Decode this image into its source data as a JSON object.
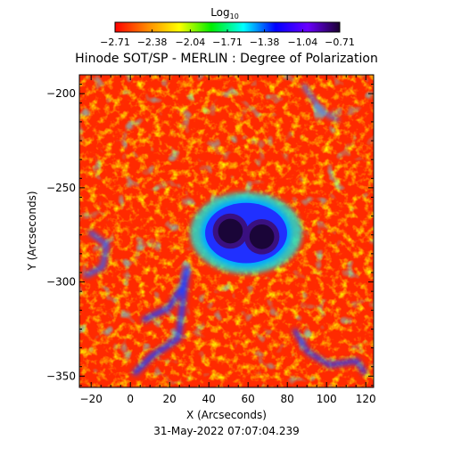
{
  "chart_data": {
    "type": "heatmap",
    "title": "Hinode SOT/SP - MERLIN : Degree of Polarization",
    "subtitle": "31-May-2022 07:07:04.239",
    "xlabel": "X (Arcseconds)",
    "ylabel": "Y (Arcseconds)",
    "xlim": [
      -26,
      124
    ],
    "ylim": [
      -356,
      -190
    ],
    "xticks": [
      -20,
      0,
      20,
      40,
      60,
      80,
      100,
      120
    ],
    "xtick_labels": [
      "−20",
      "0",
      "20",
      "40",
      "60",
      "80",
      "100",
      "120"
    ],
    "yticks": [
      -200,
      -250,
      -300,
      -350
    ],
    "ytick_labels": [
      "−200",
      "−250",
      "−300",
      "−350"
    ],
    "colorbar": {
      "label_prefix": "Log",
      "label_sub": "10",
      "range": [
        -2.71,
        -0.71
      ],
      "ticks": [
        -2.71,
        -2.38,
        -2.04,
        -1.71,
        -1.38,
        -1.04,
        -0.71
      ],
      "tick_labels": [
        "−2.71",
        "−2.38",
        "−2.04",
        "−1.71",
        "−1.38",
        "−1.04",
        "−0.71"
      ],
      "colors": [
        "#ff0000",
        "#ff8800",
        "#ffff00",
        "#00ee00",
        "#00ffff",
        "#0000ff",
        "#6a00ff",
        "#1a0030"
      ]
    },
    "features": [
      {
        "name": "umbra",
        "x": 51,
        "y": -273,
        "radius": 9
      },
      {
        "name": "umbra",
        "x": 67,
        "y": -276,
        "radius": 9
      },
      {
        "name": "penumbra",
        "x": 59,
        "y": -274,
        "radius": 22
      }
    ]
  }
}
